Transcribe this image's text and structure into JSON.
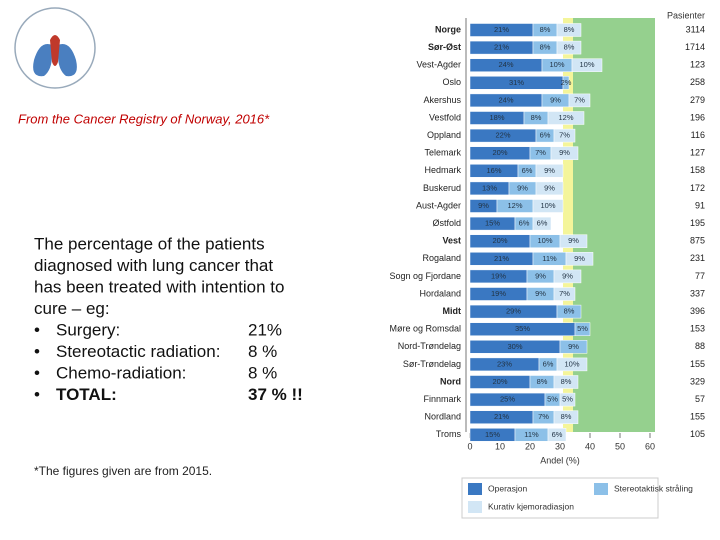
{
  "slide": {
    "source": "From the Cancer Registry of Norway, 2016*",
    "intro": [
      "The percentage of the patients",
      "diagnosed with lung cancer that",
      "has been treated with intention to",
      "cure – eg:"
    ],
    "items": [
      {
        "label": "Surgery:",
        "value": "21%"
      },
      {
        "label": "Stereotactic radiation:",
        "value": "8 %"
      },
      {
        "label": "Chemo-radiation:",
        "value": "8 %"
      },
      {
        "label": "TOTAL:",
        "value": "37 % !!"
      }
    ],
    "footnote": "*The figures given are from 2015."
  },
  "chart_data": {
    "type": "stacked_barh",
    "x_label": "Andel (%)",
    "count_header": "Pasienter",
    "categories": [
      "Norge",
      "Sør-Øst",
      "Vest-Agder",
      "Oslo",
      "Akershus",
      "Vestfold",
      "Oppland",
      "Telemark",
      "Hedmark",
      "Buskerud",
      "Aust-Agder",
      "Østfold",
      "Vest",
      "Rogaland",
      "Sogn og Fjordane",
      "Hordaland",
      "Midt",
      "Møre og Romsdal",
      "Nord-Trøndelag",
      "Sør-Trøndelag",
      "Nord",
      "Finnmark",
      "Nordland",
      "Troms"
    ],
    "bold": [
      "Norge",
      "Sør-Øst",
      "Vest",
      "Midt",
      "Nord"
    ],
    "counts": [
      3114,
      1714,
      123,
      258,
      279,
      196,
      116,
      127,
      158,
      172,
      91,
      195,
      875,
      231,
      77,
      337,
      396,
      153,
      88,
      155,
      329,
      57,
      155,
      105
    ],
    "series": [
      {
        "name": "Operasjon",
        "color": "#3a78c2",
        "values": [
          21,
          21,
          24,
          31,
          24,
          18,
          22,
          20,
          16,
          13,
          9,
          15,
          20,
          21,
          19,
          19,
          29,
          35,
          30,
          23,
          20,
          25,
          21,
          15
        ],
        "value_labels": [
          "21%",
          "21%",
          "24%",
          "31%",
          "24%",
          "18%",
          "22%",
          "20%",
          "16%",
          "13%",
          "9%",
          "15%",
          "20%",
          "21%",
          "19%",
          "19%",
          "29%",
          "35%",
          "30%",
          "23%",
          "20%",
          "25%",
          "21%",
          "15%"
        ]
      },
      {
        "name": "Stereotaktisk stråling",
        "color": "#8cc0e8",
        "values": [
          8,
          8,
          10,
          2,
          9,
          8,
          6,
          7,
          6,
          9,
          12,
          6,
          10,
          11,
          9,
          9,
          8,
          5,
          9,
          6,
          8,
          5,
          7,
          11
        ],
        "value_labels": [
          "8%",
          "8%",
          "10%",
          "2%",
          "9%",
          "8%",
          "6%",
          "7%",
          "6%",
          "9%",
          "12%",
          "6%",
          "10%",
          "11%",
          "9%",
          "9%",
          "8%",
          "5%",
          "9%",
          "6%",
          "8%",
          "5%",
          "7%",
          "11%"
        ]
      },
      {
        "name": "Kurativ kjemoradiasjon",
        "color": "#d2e6f5",
        "values": [
          8,
          8,
          10,
          null,
          7,
          12,
          7,
          9,
          9,
          9,
          10,
          6,
          9,
          9,
          9,
          7,
          null,
          null,
          null,
          10,
          8,
          5,
          8,
          6
        ],
        "value_labels": [
          "8%",
          "8%",
          "10%",
          null,
          "7%",
          "12%",
          "7%",
          "9%",
          "9%",
          "9%",
          "10%",
          "6%",
          "9%",
          "9%",
          "9%",
          "7%",
          null,
          null,
          null,
          "10%",
          "8%",
          "5%",
          "8%",
          "6%"
        ]
      }
    ],
    "xlim": [
      0,
      60
    ],
    "xticks": [
      0,
      10,
      20,
      30,
      40,
      50,
      60
    ]
  }
}
